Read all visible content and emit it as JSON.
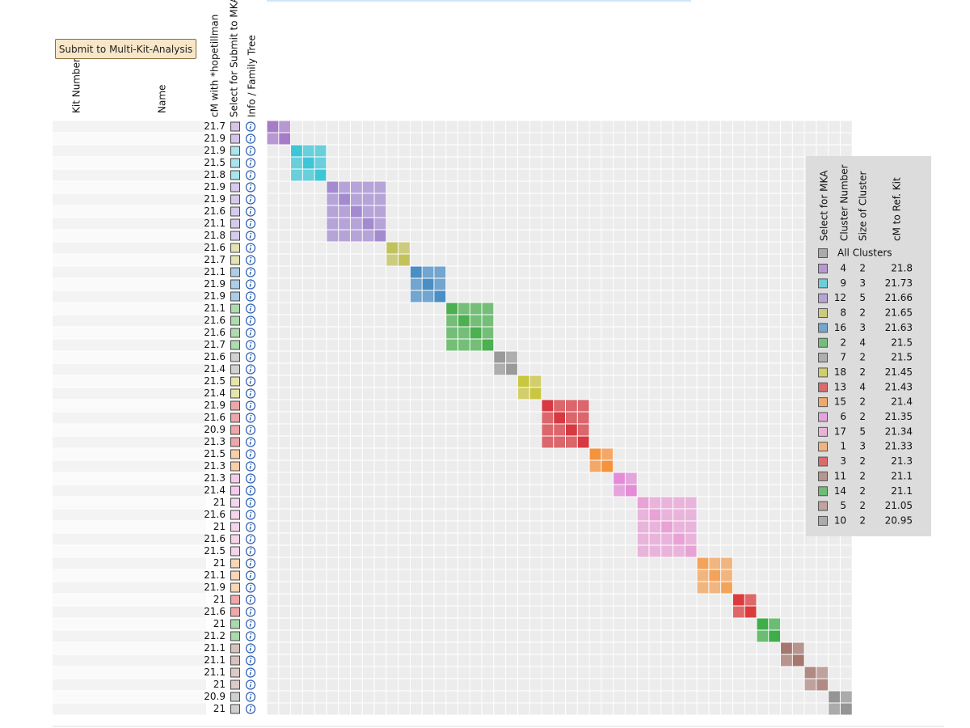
{
  "toolbar": {
    "button": "Submit to Multi-Kit-Analysis"
  },
  "table": {
    "headers": {
      "kit": "Kit Number",
      "name": "Name",
      "cm": "cM with *hopetillman",
      "select": "Select for Submit to MKA",
      "info": "Info / Family Tree"
    },
    "rows": [
      {
        "cm": 21.7,
        "cluster": 4
      },
      {
        "cm": 21.9,
        "cluster": 4
      },
      {
        "cm": 21.9,
        "cluster": 9
      },
      {
        "cm": 21.5,
        "cluster": 9
      },
      {
        "cm": 21.8,
        "cluster": 9
      },
      {
        "cm": 21.9,
        "cluster": 12
      },
      {
        "cm": 21.9,
        "cluster": 12
      },
      {
        "cm": 21.6,
        "cluster": 12
      },
      {
        "cm": 21.1,
        "cluster": 12
      },
      {
        "cm": 21.8,
        "cluster": 12
      },
      {
        "cm": 21.6,
        "cluster": 8
      },
      {
        "cm": 21.7,
        "cluster": 8
      },
      {
        "cm": 21.1,
        "cluster": 16
      },
      {
        "cm": 21.9,
        "cluster": 16
      },
      {
        "cm": 21.9,
        "cluster": 16
      },
      {
        "cm": 21.1,
        "cluster": 2
      },
      {
        "cm": 21.6,
        "cluster": 2
      },
      {
        "cm": 21.6,
        "cluster": 2
      },
      {
        "cm": 21.7,
        "cluster": 2
      },
      {
        "cm": 21.6,
        "cluster": 7
      },
      {
        "cm": 21.4,
        "cluster": 7
      },
      {
        "cm": 21.5,
        "cluster": 18
      },
      {
        "cm": 21.4,
        "cluster": 18
      },
      {
        "cm": 21.9,
        "cluster": 13
      },
      {
        "cm": 21.6,
        "cluster": 13
      },
      {
        "cm": 20.9,
        "cluster": 13
      },
      {
        "cm": 21.3,
        "cluster": 13
      },
      {
        "cm": 21.5,
        "cluster": 15
      },
      {
        "cm": 21.3,
        "cluster": 15
      },
      {
        "cm": 21.3,
        "cluster": 6
      },
      {
        "cm": 21.4,
        "cluster": 6
      },
      {
        "cm": 21,
        "cluster": 17
      },
      {
        "cm": 21.6,
        "cluster": 17
      },
      {
        "cm": 21,
        "cluster": 17
      },
      {
        "cm": 21.6,
        "cluster": 17
      },
      {
        "cm": 21.5,
        "cluster": 17
      },
      {
        "cm": 21,
        "cluster": 1
      },
      {
        "cm": 21.1,
        "cluster": 1
      },
      {
        "cm": 21.9,
        "cluster": 1
      },
      {
        "cm": 21,
        "cluster": 3
      },
      {
        "cm": 21.6,
        "cluster": 3
      },
      {
        "cm": 21,
        "cluster": 14
      },
      {
        "cm": 21.2,
        "cluster": 14
      },
      {
        "cm": 21.1,
        "cluster": 11
      },
      {
        "cm": 21.1,
        "cluster": 11
      },
      {
        "cm": 21.1,
        "cluster": 5
      },
      {
        "cm": 21,
        "cluster": 5
      },
      {
        "cm": 20.9,
        "cluster": 10
      },
      {
        "cm": 21,
        "cluster": 10
      }
    ]
  },
  "legend": {
    "headers": [
      "Select for MKA",
      "Cluster Number",
      "Size of Cluster",
      "cM to Ref. Kit"
    ],
    "all": "All Clusters",
    "clusters": [
      {
        "number": 4,
        "size": 2,
        "cm": 21.8,
        "color": "#a67cc9"
      },
      {
        "number": 9,
        "size": 3,
        "cm": 21.73,
        "color": "#3ec6d6"
      },
      {
        "number": 12,
        "size": 5,
        "cm": 21.66,
        "color": "#a48bd0"
      },
      {
        "number": 8,
        "size": 2,
        "cm": 21.65,
        "color": "#c2c25a"
      },
      {
        "number": 16,
        "size": 3,
        "cm": 21.63,
        "color": "#4a8ec6"
      },
      {
        "number": 2,
        "size": 4,
        "cm": 21.5,
        "color": "#4caf50"
      },
      {
        "number": 7,
        "size": 2,
        "cm": 21.5,
        "color": "#9a9a9a"
      },
      {
        "number": 18,
        "size": 2,
        "cm": 21.45,
        "color": "#c9c640"
      },
      {
        "number": 13,
        "size": 4,
        "cm": 21.43,
        "color": "#d63a40"
      },
      {
        "number": 15,
        "size": 2,
        "cm": 21.4,
        "color": "#f5923e"
      },
      {
        "number": 6,
        "size": 2,
        "cm": 21.35,
        "color": "#e48cd8"
      },
      {
        "number": 17,
        "size": 5,
        "cm": 21.34,
        "color": "#e8a2d5"
      },
      {
        "number": 1,
        "size": 3,
        "cm": 21.33,
        "color": "#f3a45b"
      },
      {
        "number": 3,
        "size": 2,
        "cm": 21.3,
        "color": "#dc3b3b"
      },
      {
        "number": 11,
        "size": 2,
        "cm": 21.1,
        "color": "#a5776f"
      },
      {
        "number": 14,
        "size": 2,
        "cm": 21.1,
        "color": "#3fae49"
      },
      {
        "number": 5,
        "size": 2,
        "cm": 21.05,
        "color": "#b08a83"
      },
      {
        "number": 10,
        "size": 2,
        "cm": 20.95,
        "color": "#959595"
      }
    ]
  }
}
